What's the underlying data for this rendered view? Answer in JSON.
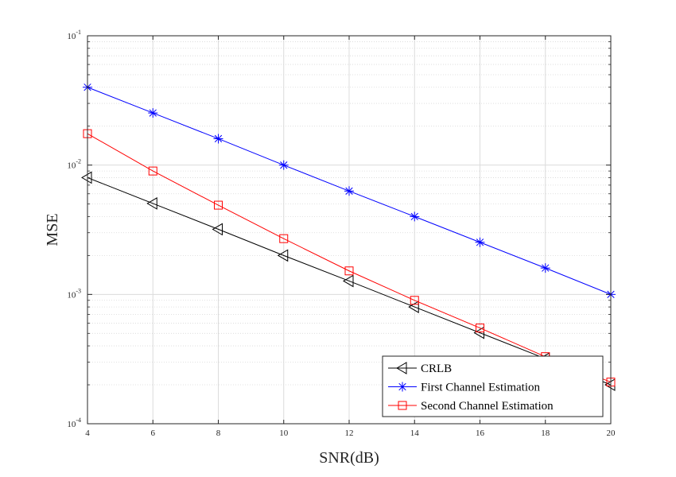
{
  "chart_data": {
    "type": "line",
    "title": "",
    "xlabel": "SNR(dB)",
    "ylabel": "MSE",
    "x": [
      4,
      6,
      8,
      10,
      12,
      14,
      16,
      18,
      20
    ],
    "xlim": [
      4,
      20
    ],
    "ylim": [
      0.0001,
      0.1
    ],
    "y_scale": "log",
    "x_ticks": [
      "4",
      "6",
      "8",
      "10",
      "12",
      "14",
      "16",
      "18",
      "20"
    ],
    "y_ticks": [
      {
        "base": "10",
        "exp": "-4"
      },
      {
        "base": "10",
        "exp": "-3"
      },
      {
        "base": "10",
        "exp": "-2"
      },
      {
        "base": "10",
        "exp": "-1"
      }
    ],
    "grid": true,
    "legend_position": "bottom-right",
    "series": [
      {
        "name": "CRLB",
        "marker": "triangle-left",
        "color": "#000000",
        "values": [
          0.008,
          0.00505,
          0.00319,
          0.002,
          0.00127,
          0.0008,
          0.000505,
          0.000319,
          0.0002
        ]
      },
      {
        "name": "First Channel Estimation",
        "marker": "asterisk",
        "color": "#0000ff",
        "values": [
          0.04,
          0.0253,
          0.016,
          0.01,
          0.0063,
          0.004,
          0.00253,
          0.0016,
          0.001
        ]
      },
      {
        "name": "Second Channel Estimation",
        "marker": "square",
        "color": "#ff0000",
        "values": [
          0.0175,
          0.009,
          0.0049,
          0.0027,
          0.00152,
          0.0009,
          0.00055,
          0.00033,
          0.00021
        ]
      }
    ]
  }
}
